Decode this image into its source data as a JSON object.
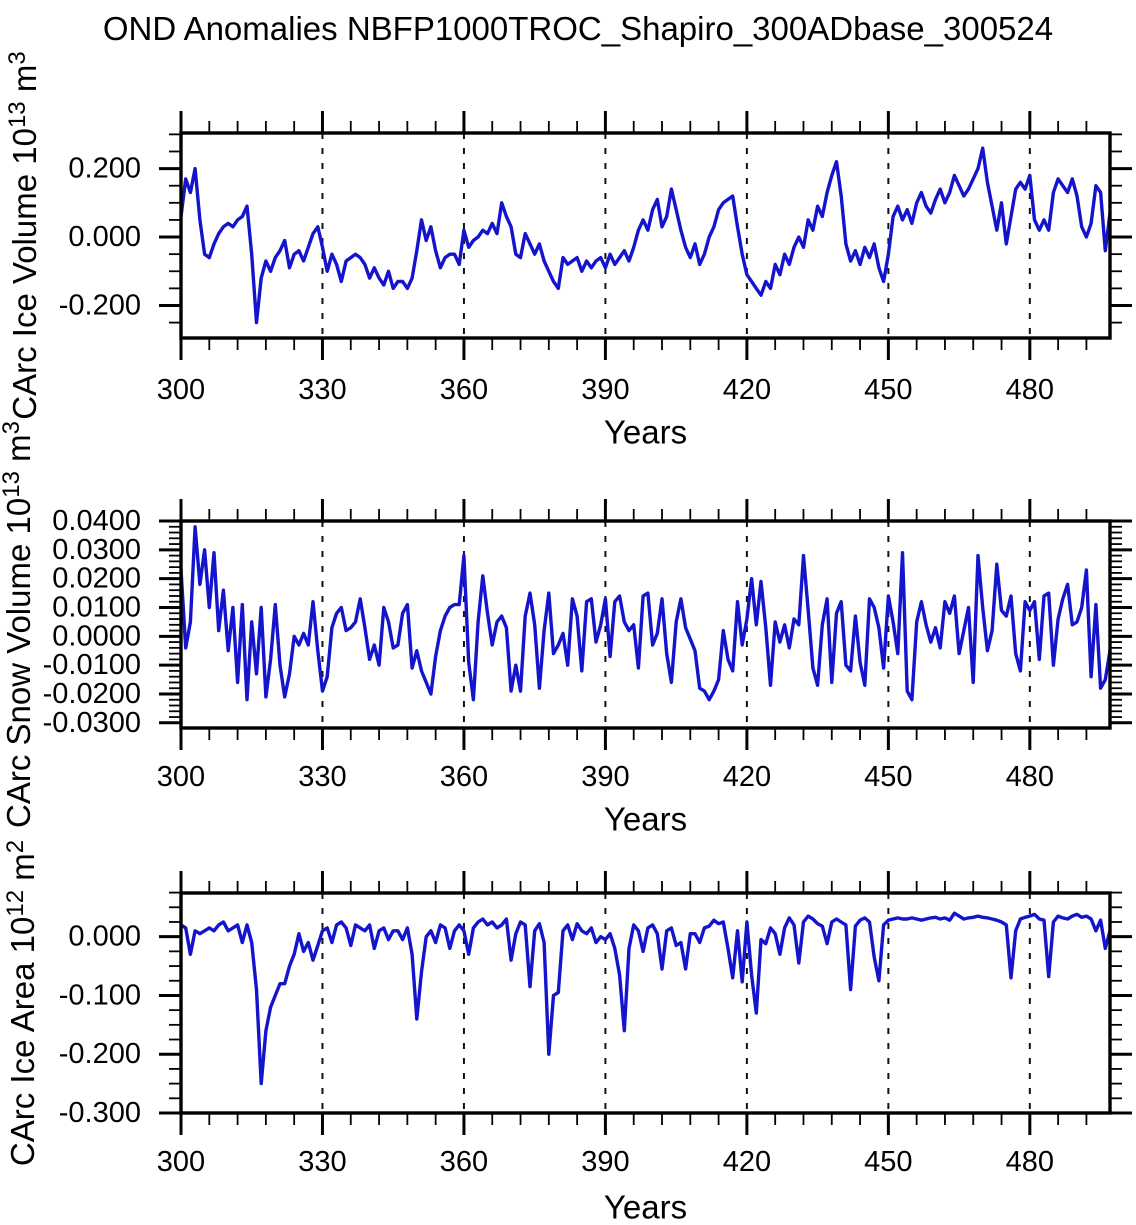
{
  "figure_title": "OND Anomalies NBFP1000TROC_Shapiro_300ADbase_300524",
  "chart_data": [
    {
      "type": "line",
      "xlabel": "Years",
      "ylabel": {
        "segments": [
          {
            "text": "CArc Ice Volume 10"
          },
          {
            "text": "13",
            "superscript": true
          },
          {
            "text": " m"
          },
          {
            "text": "3",
            "superscript": true
          }
        ]
      },
      "x_start": 300,
      "x_step": 1,
      "xlim": [
        300,
        497
      ],
      "ylim": [
        -0.295,
        0.304
      ],
      "xticks": [
        300,
        330,
        360,
        390,
        420,
        450,
        480
      ],
      "xtick_labels": [
        "300",
        "330",
        "360",
        "390",
        "420",
        "450",
        "480"
      ],
      "x_minor_step": 6,
      "yticks": [
        0.2,
        0.0,
        -0.2
      ],
      "ytick_labels": [
        "0.200",
        "0.000",
        "-0.200"
      ],
      "y_minor_step": 0.05,
      "grid_x": [
        330,
        360,
        390,
        420,
        450,
        480
      ],
      "grid_style": "dashed",
      "line_color": "#1414cc",
      "values": [
        0.06,
        0.17,
        0.13,
        0.2,
        0.05,
        -0.05,
        -0.06,
        -0.02,
        0.01,
        0.03,
        0.04,
        0.03,
        0.05,
        0.06,
        0.09,
        -0.05,
        -0.25,
        -0.12,
        -0.07,
        -0.1,
        -0.06,
        -0.04,
        -0.01,
        -0.09,
        -0.05,
        -0.04,
        -0.07,
        -0.03,
        0.01,
        0.03,
        -0.03,
        -0.1,
        -0.05,
        -0.08,
        -0.13,
        -0.07,
        -0.06,
        -0.05,
        -0.06,
        -0.08,
        -0.12,
        -0.09,
        -0.12,
        -0.14,
        -0.1,
        -0.15,
        -0.13,
        -0.13,
        -0.15,
        -0.12,
        -0.04,
        0.05,
        -0.01,
        0.03,
        -0.04,
        -0.09,
        -0.06,
        -0.05,
        -0.05,
        -0.08,
        0.02,
        -0.03,
        -0.01,
        0.0,
        0.02,
        0.01,
        0.04,
        0.01,
        0.1,
        0.06,
        0.03,
        -0.05,
        -0.06,
        0.01,
        -0.02,
        -0.05,
        -0.02,
        -0.07,
        -0.1,
        -0.13,
        -0.15,
        -0.06,
        -0.08,
        -0.07,
        -0.06,
        -0.1,
        -0.07,
        -0.09,
        -0.07,
        -0.06,
        -0.09,
        -0.05,
        -0.08,
        -0.06,
        -0.04,
        -0.07,
        -0.03,
        0.02,
        0.05,
        0.02,
        0.08,
        0.11,
        0.03,
        0.06,
        0.14,
        0.08,
        0.02,
        -0.03,
        -0.06,
        -0.02,
        -0.08,
        -0.05,
        0.0,
        0.03,
        0.08,
        0.1,
        0.11,
        0.12,
        0.03,
        -0.05,
        -0.11,
        -0.13,
        -0.15,
        -0.17,
        -0.13,
        -0.15,
        -0.08,
        -0.11,
        -0.05,
        -0.08,
        -0.03,
        0.0,
        -0.03,
        0.05,
        0.02,
        0.09,
        0.06,
        0.13,
        0.18,
        0.22,
        0.12,
        -0.02,
        -0.07,
        -0.04,
        -0.08,
        -0.03,
        -0.06,
        -0.02,
        -0.09,
        -0.13,
        -0.05,
        0.06,
        0.09,
        0.05,
        0.08,
        0.04,
        0.1,
        0.13,
        0.09,
        0.07,
        0.11,
        0.14,
        0.1,
        0.13,
        0.18,
        0.15,
        0.12,
        0.14,
        0.17,
        0.2,
        0.26,
        0.16,
        0.09,
        0.02,
        0.1,
        -0.02,
        0.06,
        0.14,
        0.16,
        0.14,
        0.18,
        0.05,
        0.02,
        0.05,
        0.02,
        0.13,
        0.17,
        0.15,
        0.13,
        0.17,
        0.12,
        0.03,
        0.0,
        0.04,
        0.15,
        0.13,
        -0.04,
        0.07
      ]
    },
    {
      "type": "line",
      "xlabel": "Years",
      "ylabel": {
        "segments": [
          {
            "text": "CArc Snow Volume 10"
          },
          {
            "text": "13",
            "superscript": true
          },
          {
            "text": " m"
          },
          {
            "text": "3",
            "superscript": true
          }
        ]
      },
      "x_start": 300,
      "x_step": 1,
      "xlim": [
        300,
        497
      ],
      "ylim": [
        -0.0318,
        0.04
      ],
      "xticks": [
        300,
        330,
        360,
        390,
        420,
        450,
        480
      ],
      "xtick_labels": [
        "300",
        "330",
        "360",
        "390",
        "420",
        "450",
        "480"
      ],
      "x_minor_step": 6,
      "yticks": [
        0.04,
        0.03,
        0.02,
        0.01,
        0.0,
        -0.01,
        -0.02,
        -0.03
      ],
      "ytick_labels": [
        "0.0400",
        "0.0300",
        "0.0200",
        "0.0100",
        "0.0000",
        "-0.0100",
        "-0.0200",
        "-0.0300"
      ],
      "y_minor_step": 0.002,
      "grid_x": [
        330,
        360,
        390,
        420,
        450,
        480
      ],
      "grid_style": "dashed",
      "line_color": "#1414cc",
      "values": [
        0.023,
        -0.004,
        0.005,
        0.038,
        0.018,
        0.03,
        0.01,
        0.029,
        0.002,
        0.016,
        -0.005,
        0.01,
        -0.016,
        0.011,
        -0.022,
        0.005,
        -0.013,
        0.01,
        -0.021,
        -0.008,
        0.011,
        -0.01,
        -0.021,
        -0.013,
        0.0,
        -0.003,
        0.001,
        -0.003,
        0.012,
        -0.005,
        -0.019,
        -0.014,
        0.003,
        0.008,
        0.01,
        0.002,
        0.003,
        0.005,
        0.013,
        0.003,
        -0.008,
        -0.003,
        -0.01,
        0.01,
        0.005,
        -0.004,
        -0.003,
        0.008,
        0.011,
        -0.011,
        -0.005,
        -0.012,
        -0.016,
        -0.02,
        -0.007,
        0.002,
        0.007,
        0.01,
        0.011,
        0.011,
        0.028,
        -0.009,
        -0.022,
        0.005,
        0.021,
        0.008,
        -0.003,
        0.005,
        0.007,
        0.003,
        -0.019,
        -0.01,
        -0.019,
        0.007,
        0.015,
        0.004,
        -0.018,
        0.002,
        0.015,
        -0.006,
        -0.003,
        0.001,
        -0.01,
        0.013,
        0.007,
        -0.012,
        0.012,
        0.013,
        -0.002,
        0.004,
        0.013,
        -0.007,
        0.012,
        0.014,
        0.005,
        0.002,
        0.004,
        -0.011,
        0.014,
        0.015,
        -0.003,
        0.001,
        0.013,
        -0.006,
        -0.016,
        0.005,
        0.013,
        0.003,
        -0.001,
        -0.005,
        -0.018,
        -0.019,
        -0.022,
        -0.019,
        -0.015,
        0.002,
        -0.008,
        -0.012,
        0.012,
        -0.003,
        0.006,
        0.02,
        0.004,
        0.019,
        0.003,
        -0.017,
        0.005,
        -0.002,
        0.004,
        -0.004,
        0.006,
        0.004,
        0.028,
        0.009,
        -0.011,
        -0.017,
        0.004,
        0.013,
        -0.016,
        0.008,
        0.012,
        -0.01,
        -0.012,
        0.007,
        -0.009,
        -0.017,
        0.013,
        0.01,
        0.003,
        -0.011,
        0.014,
        0.005,
        -0.006,
        0.029,
        -0.019,
        -0.022,
        0.005,
        0.012,
        0.004,
        -0.002,
        0.003,
        -0.004,
        0.012,
        0.008,
        0.014,
        -0.006,
        0.002,
        0.01,
        -0.016,
        0.028,
        0.01,
        -0.005,
        0.002,
        0.025,
        0.009,
        0.007,
        0.014,
        -0.006,
        -0.012,
        0.012,
        0.009,
        0.012,
        -0.008,
        0.014,
        0.015,
        -0.01,
        0.006,
        0.013,
        0.018,
        0.004,
        0.005,
        0.01,
        0.023,
        -0.014,
        0.011,
        -0.018,
        -0.015,
        -0.005
      ]
    },
    {
      "type": "line",
      "xlabel": "Years",
      "ylabel": {
        "segments": [
          {
            "text": "CArc Ice Area 10"
          },
          {
            "text": "12",
            "superscript": true
          },
          {
            "text": " m"
          },
          {
            "text": "2",
            "superscript": true
          }
        ]
      },
      "x_start": 300,
      "x_step": 1,
      "xlim": [
        300,
        497
      ],
      "ylim": [
        -0.3,
        0.0743
      ],
      "xticks": [
        300,
        330,
        360,
        390,
        420,
        450,
        480
      ],
      "xtick_labels": [
        "300",
        "330",
        "360",
        "390",
        "420",
        "450",
        "480"
      ],
      "x_minor_step": 6,
      "yticks": [
        0.0,
        -0.1,
        -0.2,
        -0.3
      ],
      "ytick_labels": [
        "0.000",
        "-0.100",
        "-0.200",
        "-0.300"
      ],
      "y_minor_step": 0.025,
      "grid_x": [
        330,
        360,
        390,
        420,
        450,
        480
      ],
      "grid_style": "dashed",
      "line_color": "#1414cc",
      "values": [
        0.02,
        0.015,
        -0.03,
        0.01,
        0.005,
        0.01,
        0.015,
        0.01,
        0.02,
        0.025,
        0.01,
        0.015,
        0.02,
        -0.01,
        0.02,
        -0.01,
        -0.09,
        -0.25,
        -0.16,
        -0.12,
        -0.1,
        -0.08,
        -0.08,
        -0.05,
        -0.03,
        0.005,
        -0.025,
        -0.01,
        -0.04,
        -0.015,
        0.01,
        0.015,
        -0.01,
        0.02,
        0.025,
        0.015,
        -0.015,
        0.02,
        0.015,
        0.01,
        0.02,
        -0.02,
        0.01,
        0.015,
        -0.005,
        0.01,
        0.01,
        -0.005,
        0.015,
        -0.03,
        -0.14,
        -0.06,
        0.0,
        0.01,
        -0.01,
        0.02,
        0.015,
        -0.02,
        0.01,
        0.02,
        0.01,
        -0.03,
        0.015,
        0.025,
        0.03,
        0.02,
        0.025,
        0.015,
        0.02,
        0.03,
        -0.04,
        0.005,
        0.025,
        0.02,
        -0.085,
        0.01,
        0.022,
        -0.01,
        -0.2,
        -0.1,
        -0.095,
        0.01,
        0.02,
        -0.005,
        0.022,
        0.01,
        0.005,
        0.015,
        -0.01,
        0.0,
        -0.005,
        0.005,
        -0.02,
        -0.065,
        -0.16,
        -0.02,
        0.02,
        0.01,
        -0.025,
        0.015,
        0.02,
        0.005,
        -0.055,
        0.01,
        0.015,
        -0.015,
        -0.01,
        -0.055,
        0.005,
        0.005,
        -0.01,
        0.015,
        0.018,
        0.028,
        0.022,
        0.025,
        -0.02,
        -0.07,
        0.01,
        -0.077,
        0.025,
        -0.065,
        -0.13,
        -0.005,
        -0.012,
        0.015,
        0.005,
        -0.03,
        0.015,
        0.032,
        0.02,
        -0.045,
        0.025,
        0.035,
        0.03,
        0.022,
        0.018,
        -0.012,
        0.025,
        0.03,
        0.025,
        0.02,
        -0.09,
        0.018,
        0.028,
        0.032,
        0.025,
        -0.035,
        -0.075,
        0.02,
        0.028,
        0.03,
        0.032,
        0.03,
        0.03,
        0.032,
        0.03,
        0.028,
        0.03,
        0.032,
        0.033,
        0.03,
        0.032,
        0.028,
        0.04,
        0.035,
        0.03,
        0.032,
        0.033,
        0.035,
        0.033,
        0.032,
        0.03,
        0.028,
        0.025,
        0.02,
        -0.07,
        0.01,
        0.03,
        0.033,
        0.035,
        0.038,
        0.03,
        0.028,
        -0.068,
        0.025,
        0.035,
        0.032,
        0.03,
        0.035,
        0.038,
        0.033,
        0.035,
        0.03,
        0.01,
        0.028,
        -0.02,
        0.01
      ]
    }
  ]
}
